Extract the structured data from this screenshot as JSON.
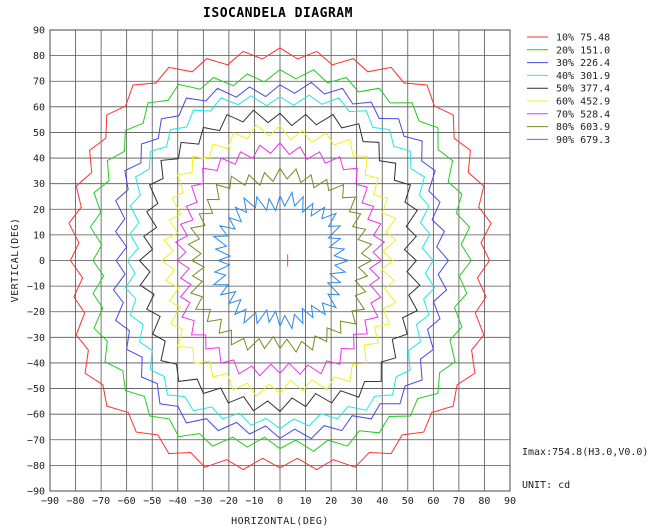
{
  "chart_data": {
    "type": "line",
    "title": "ISOCANDELA DIAGRAM",
    "xlabel": "HORIZONTAL(DEG)",
    "ylabel": "VERTICAL(DEG)",
    "xlim": [
      -90,
      90
    ],
    "ylim": [
      -90,
      90
    ],
    "xticks": [
      -90,
      -80,
      -70,
      -60,
      -50,
      -40,
      -30,
      -20,
      -10,
      0,
      10,
      20,
      30,
      40,
      50,
      60,
      70,
      80,
      90
    ],
    "yticks": [
      -90,
      -80,
      -70,
      -60,
      -50,
      -40,
      -30,
      -20,
      -10,
      0,
      10,
      20,
      30,
      40,
      50,
      60,
      70,
      80,
      90
    ],
    "grid": true,
    "legend_position": "top-right",
    "peak_marker": {
      "x": 3,
      "y": 0,
      "color": "#ff4040"
    },
    "series": [
      {
        "name": "10% 75.48",
        "color": "#ff3030",
        "radius": 80,
        "mod_amp": 2.0,
        "side_rx": 80,
        "top_ry": 80
      },
      {
        "name": "20% 151.0",
        "color": "#22cc22",
        "radius": 72,
        "mod_amp": 2.0,
        "side_rx": 72,
        "top_ry": 72
      },
      {
        "name": "30% 226.4",
        "color": "#4848e8",
        "radius": 65,
        "mod_amp": 2.0,
        "side_rx": 63,
        "top_ry": 67
      },
      {
        "name": "40% 301.9",
        "color": "#20e8e8",
        "radius": 61,
        "mod_amp": 1.8,
        "side_rx": 58,
        "top_ry": 63
      },
      {
        "name": "50% 377.4",
        "color": "#303030",
        "radius": 53,
        "mod_amp": 2.2,
        "side_rx": 52,
        "top_ry": 56
      },
      {
        "name": "60% 452.9",
        "color": "#f0f020",
        "radius": 48,
        "mod_amp": 2.2,
        "side_rx": 43,
        "top_ry": 50
      },
      {
        "name": "70% 528.4",
        "color": "#ee30ee",
        "radius": 42,
        "mod_amp": 2.0,
        "side_rx": 38,
        "top_ry": 43
      },
      {
        "name": "80% 603.9",
        "color": "#7a8a20",
        "radius": 33,
        "mod_amp": 2.2,
        "side_rx": 33,
        "top_ry": 33
      },
      {
        "name": "90% 679.3",
        "color": "#2a8ae8",
        "radius": 23,
        "mod_amp": 2.5,
        "side_rx": 23,
        "top_ry": 23
      }
    ],
    "imax_label": "Imax:754.8(H3.0,V0.0)",
    "unit_label": "UNIT: cd"
  }
}
